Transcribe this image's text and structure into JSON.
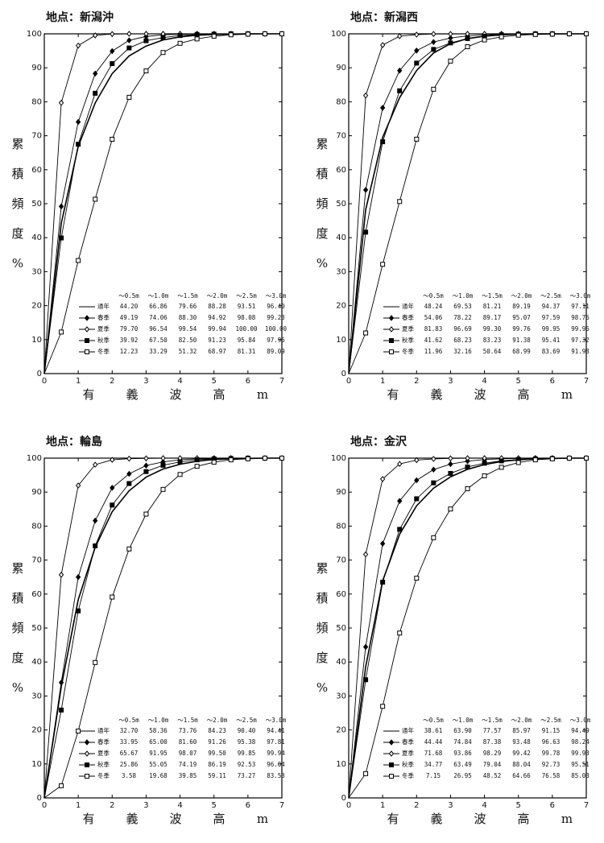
{
  "chart_data": [
    {
      "type": "line",
      "title": "地点：新潟沖",
      "ylabel": [
        "累",
        "積",
        "頻",
        "度",
        "%"
      ],
      "xlabel": [
        "有",
        "義",
        "波",
        "高",
        "m"
      ],
      "x": [
        0,
        0.5,
        1,
        1.5,
        2,
        2.5,
        3,
        3.5,
        4,
        4.5,
        5,
        5.5,
        6,
        6.5,
        7
      ],
      "xlim": [
        0,
        7
      ],
      "xticks": [
        0,
        1,
        2,
        3,
        4,
        5,
        6,
        7
      ],
      "ylim": [
        0,
        100
      ],
      "yticks": [
        0,
        10,
        20,
        30,
        40,
        50,
        60,
        70,
        80,
        90,
        100
      ],
      "table_columns": [
        "～0.5m",
        "～1.0m",
        "～1.5m",
        "～2.0m",
        "～2.5m",
        "～3.0m"
      ],
      "series": [
        {
          "name": "通年",
          "color": "#000000",
          "marker": "none",
          "values": [
            0,
            44.2,
            66.86,
            79.66,
            88.28,
            93.51,
            96.4,
            98.2,
            99.1,
            99.6,
            99.8,
            99.9,
            100,
            100,
            100
          ],
          "table_values": [
            "44.20",
            "66.86",
            "79.66",
            "88.28",
            "93.51",
            "96.40"
          ]
        },
        {
          "name": "春季",
          "color": "#000000",
          "marker": "diamond",
          "values": [
            0,
            49.19,
            74.06,
            88.3,
            94.92,
            98.08,
            99.23,
            99.7,
            99.9,
            100,
            100,
            100,
            100,
            100,
            100
          ],
          "table_values": [
            "49.19",
            "74.06",
            "88.30",
            "94.92",
            "98.08",
            "99.23"
          ]
        },
        {
          "name": "夏季",
          "color": "#000000",
          "marker": "open-diamond",
          "values": [
            0,
            79.7,
            96.54,
            99.54,
            99.94,
            100,
            100,
            100,
            100,
            100,
            100,
            100,
            100,
            100,
            100
          ],
          "table_values": [
            "79.70",
            "96.54",
            "99.54",
            "99.94",
            "100.00",
            "100.00"
          ]
        },
        {
          "name": "秋季",
          "color": "#000000",
          "marker": "square",
          "values": [
            0,
            39.92,
            67.5,
            82.5,
            91.23,
            95.84,
            97.96,
            98.9,
            99.5,
            99.8,
            99.9,
            100,
            100,
            100,
            100
          ],
          "table_values": [
            "39.92",
            "67.50",
            "82.50",
            "91.23",
            "95.84",
            "97.96"
          ]
        },
        {
          "name": "冬季",
          "color": "#000000",
          "marker": "open-square",
          "values": [
            0,
            12.23,
            33.29,
            51.32,
            68.97,
            81.31,
            89.09,
            94.5,
            97.2,
            98.5,
            99.3,
            99.7,
            99.9,
            100,
            100
          ],
          "table_values": [
            "12.23",
            "33.29",
            "51.32",
            "68.97",
            "81.31",
            "89.09"
          ]
        }
      ]
    },
    {
      "type": "line",
      "title": "地点：新潟西",
      "ylabel": [
        "累",
        "積",
        "頻",
        "度",
        "%"
      ],
      "xlabel": [
        "有",
        "義",
        "波",
        "高",
        "m"
      ],
      "x": [
        0,
        0.5,
        1,
        1.5,
        2,
        2.5,
        3,
        3.5,
        4,
        4.5,
        5,
        5.5,
        6,
        6.5,
        7
      ],
      "xlim": [
        0,
        7
      ],
      "xticks": [
        0,
        1,
        2,
        3,
        4,
        5,
        6,
        7
      ],
      "ylim": [
        0,
        100
      ],
      "yticks": [
        0,
        10,
        20,
        30,
        40,
        50,
        60,
        70,
        80,
        90,
        100
      ],
      "table_columns": [
        "～0.5m",
        "～1.0m",
        "～1.5m",
        "～2.0m",
        "～2.5m",
        "～3.0m"
      ],
      "series": [
        {
          "name": "通年",
          "color": "#000000",
          "marker": "none",
          "values": [
            0,
            48.24,
            69.53,
            81.21,
            89.19,
            94.37,
            97.11,
            98.6,
            99.3,
            99.7,
            99.9,
            100,
            100,
            100,
            100
          ],
          "table_values": [
            "48.24",
            "69.53",
            "81.21",
            "89.19",
            "94.37",
            "97.11"
          ]
        },
        {
          "name": "春季",
          "color": "#000000",
          "marker": "diamond",
          "values": [
            0,
            54.06,
            78.22,
            89.17,
            95.07,
            97.59,
            98.76,
            99.4,
            99.7,
            99.9,
            100,
            100,
            100,
            100,
            100
          ],
          "table_values": [
            "54.06",
            "78.22",
            "89.17",
            "95.07",
            "97.59",
            "98.76"
          ]
        },
        {
          "name": "夏季",
          "color": "#000000",
          "marker": "open-diamond",
          "values": [
            0,
            81.83,
            96.69,
            99.3,
            99.76,
            99.95,
            99.96,
            100,
            100,
            100,
            100,
            100,
            100,
            100,
            100
          ],
          "table_values": [
            "81.83",
            "96.69",
            "99.30",
            "99.76",
            "99.95",
            "99.96"
          ]
        },
        {
          "name": "秋季",
          "color": "#000000",
          "marker": "square",
          "values": [
            0,
            41.62,
            68.23,
            83.23,
            91.38,
            95.41,
            97.32,
            98.6,
            99.3,
            99.7,
            99.9,
            100,
            100,
            100,
            100
          ],
          "table_values": [
            "41.62",
            "68.23",
            "83.23",
            "91.38",
            "95.41",
            "97.32"
          ]
        },
        {
          "name": "冬季",
          "color": "#000000",
          "marker": "open-square",
          "values": [
            0,
            11.96,
            32.16,
            50.64,
            68.99,
            83.69,
            91.98,
            96.2,
            98.2,
            99.1,
            99.6,
            99.8,
            99.9,
            100,
            100
          ],
          "table_values": [
            "11.96",
            "32.16",
            "50.64",
            "68.99",
            "83.69",
            "91.98"
          ]
        }
      ]
    },
    {
      "type": "line",
      "title": "地点：輪島",
      "ylabel": [
        "累",
        "積",
        "頻",
        "度",
        "%"
      ],
      "xlabel": [
        "有",
        "義",
        "波",
        "高",
        "m"
      ],
      "x": [
        0,
        0.5,
        1,
        1.5,
        2,
        2.5,
        3,
        3.5,
        4,
        4.5,
        5,
        5.5,
        6,
        6.5,
        7
      ],
      "xlim": [
        0,
        7
      ],
      "xticks": [
        0,
        1,
        2,
        3,
        4,
        5,
        6,
        7
      ],
      "ylim": [
        0,
        100
      ],
      "yticks": [
        0,
        10,
        20,
        30,
        40,
        50,
        60,
        70,
        80,
        90,
        100
      ],
      "table_columns": [
        "～0.5m",
        "～1.0m",
        "～1.5m",
        "～2.0m",
        "～2.5m",
        "～3.0m"
      ],
      "series": [
        {
          "name": "通年",
          "color": "#000000",
          "marker": "none",
          "values": [
            0,
            32.7,
            58.36,
            73.76,
            84.23,
            90.4,
            94.41,
            96.8,
            98.2,
            99.1,
            99.6,
            99.8,
            99.9,
            100,
            100
          ],
          "table_values": [
            "32.70",
            "58.36",
            "73.76",
            "84.23",
            "90.40",
            "94.41"
          ]
        },
        {
          "name": "春季",
          "color": "#000000",
          "marker": "diamond",
          "values": [
            0,
            33.95,
            65,
            81.6,
            91.26,
            95.38,
            97.81,
            98.9,
            99.5,
            99.8,
            99.9,
            100,
            100,
            100,
            100
          ],
          "table_values": [
            "33.95",
            "65.00",
            "81.60",
            "91.26",
            "95.38",
            "97.81"
          ]
        },
        {
          "name": "夏季",
          "color": "#000000",
          "marker": "open-diamond",
          "values": [
            0,
            65.67,
            91.95,
            98.07,
            99.5,
            99.85,
            99.94,
            100,
            100,
            100,
            100,
            100,
            100,
            100,
            100
          ],
          "table_values": [
            "65.67",
            "91.95",
            "98.07",
            "99.50",
            "99.85",
            "99.94"
          ]
        },
        {
          "name": "秋季",
          "color": "#000000",
          "marker": "square",
          "values": [
            0,
            25.86,
            55.05,
            74.19,
            86.19,
            92.53,
            96.04,
            97.9,
            98.9,
            99.5,
            99.8,
            99.9,
            100,
            100,
            100
          ],
          "table_values": [
            "25.86",
            "55.05",
            "74.19",
            "86.19",
            "92.53",
            "96.04"
          ]
        },
        {
          "name": "冬季",
          "color": "#000000",
          "marker": "open-square",
          "values": [
            0,
            3.58,
            19.68,
            39.85,
            59.11,
            73.27,
            83.53,
            90.8,
            95.2,
            97.6,
            98.8,
            99.5,
            99.8,
            100,
            100
          ],
          "table_values": [
            "3.58",
            "19.68",
            "39.85",
            "59.11",
            "73.27",
            "83.53"
          ]
        }
      ]
    },
    {
      "type": "line",
      "title": "地点：金沢",
      "ylabel": [
        "累",
        "積",
        "頻",
        "度",
        "%"
      ],
      "xlabel": [
        "有",
        "義",
        "波",
        "高",
        "m"
      ],
      "x": [
        0,
        0.5,
        1,
        1.5,
        2,
        2.5,
        3,
        3.5,
        4,
        4.5,
        5,
        5.5,
        6,
        6.5,
        7
      ],
      "xlim": [
        0,
        7
      ],
      "xticks": [
        0,
        1,
        2,
        3,
        4,
        5,
        6,
        7
      ],
      "ylim": [
        0,
        100
      ],
      "yticks": [
        0,
        10,
        20,
        30,
        40,
        50,
        60,
        70,
        80,
        90,
        100
      ],
      "table_columns": [
        "～0.5m",
        "～1.0m",
        "～1.5m",
        "～2.0m",
        "～2.5m",
        "～3.0m"
      ],
      "series": [
        {
          "name": "通年",
          "color": "#000000",
          "marker": "none",
          "values": [
            0,
            38.61,
            63.9,
            77.57,
            85.97,
            91.15,
            94.49,
            96.7,
            98.1,
            99,
            99.5,
            99.8,
            99.9,
            100,
            100
          ],
          "table_values": [
            "38.61",
            "63.90",
            "77.57",
            "85.97",
            "91.15",
            "94.49"
          ]
        },
        {
          "name": "春季",
          "color": "#000000",
          "marker": "diamond",
          "values": [
            0,
            44.44,
            74.84,
            87.38,
            93.48,
            96.63,
            98.24,
            99.1,
            99.6,
            99.8,
            99.9,
            100,
            100,
            100,
            100
          ],
          "table_values": [
            "44.44",
            "74.84",
            "87.38",
            "93.48",
            "96.63",
            "98.24"
          ]
        },
        {
          "name": "夏季",
          "color": "#000000",
          "marker": "open-diamond",
          "values": [
            0,
            71.68,
            93.86,
            98.29,
            99.42,
            99.78,
            99.93,
            100,
            100,
            100,
            100,
            100,
            100,
            100,
            100
          ],
          "table_values": [
            "71.68",
            "93.86",
            "98.29",
            "99.42",
            "99.78",
            "99.93"
          ]
        },
        {
          "name": "秋季",
          "color": "#000000",
          "marker": "square",
          "values": [
            0,
            34.77,
            63.49,
            79.04,
            88.04,
            92.73,
            95.51,
            97.4,
            98.5,
            99.2,
            99.6,
            99.8,
            99.9,
            100,
            100
          ],
          "table_values": [
            "34.77",
            "63.49",
            "79.04",
            "88.04",
            "92.73",
            "95.51"
          ]
        },
        {
          "name": "冬季",
          "color": "#000000",
          "marker": "open-square",
          "values": [
            0,
            7.15,
            26.95,
            48.52,
            64.66,
            76.58,
            85.03,
            91,
            94.8,
            97.3,
            98.7,
            99.5,
            99.8,
            100,
            100
          ],
          "table_values": [
            "7.15",
            "26.95",
            "48.52",
            "64.66",
            "76.58",
            "85.03"
          ]
        }
      ]
    }
  ]
}
